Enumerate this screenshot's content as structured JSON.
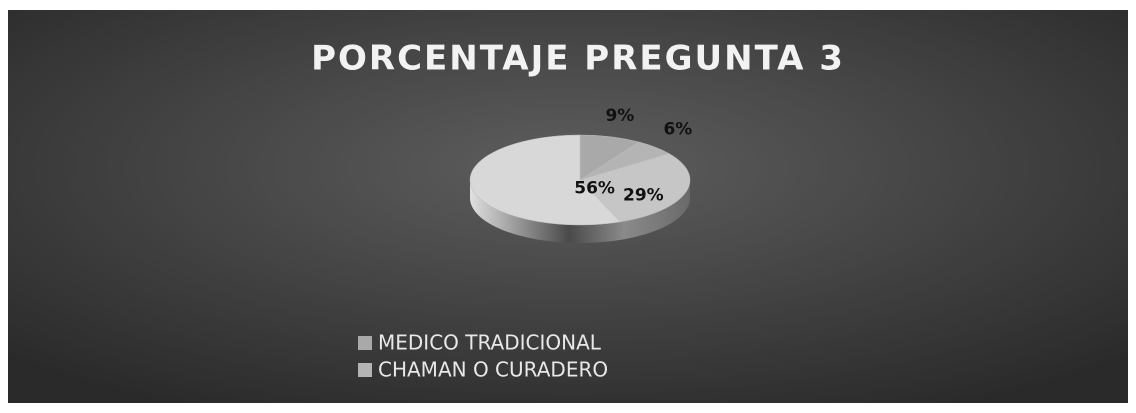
{
  "chart_data": {
    "type": "pie",
    "title": "PORCENTAJE PREGUNTA 3",
    "categories": [
      "MEDICO TRADICIONAL",
      "CHAMAN O CURADERO",
      null,
      null
    ],
    "values": [
      9,
      6,
      29,
      56
    ],
    "value_labels": [
      "9%",
      "6%",
      "29%",
      "56%"
    ],
    "colors": [
      "#a9a9a9",
      "#b4b4b4",
      "#c6c6c6",
      "#d8d8d8"
    ],
    "legend": "bottom-left"
  }
}
